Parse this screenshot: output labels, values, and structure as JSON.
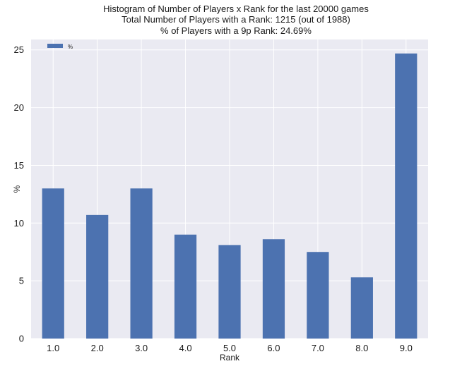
{
  "chart_data": {
    "type": "bar",
    "title_lines": [
      "Histogram of Number of Players x Rank for the last 20000 games",
      "Total Number of Players with a Rank: 1215 (out of 1988)",
      "% of Players with a 9p Rank: 24.69%"
    ],
    "xlabel": "Rank",
    "ylabel": "%",
    "categories": [
      "1.0",
      "2.0",
      "3.0",
      "4.0",
      "5.0",
      "6.0",
      "7.0",
      "8.0",
      "9.0"
    ],
    "series": [
      {
        "name": "%",
        "values": [
          13.0,
          10.7,
          13.0,
          9.0,
          8.1,
          8.6,
          7.5,
          5.3,
          24.69
        ],
        "color": "#4c72b0"
      }
    ],
    "ylim": [
      0,
      25.9
    ],
    "yticks": [
      0,
      5,
      10,
      15,
      20,
      25
    ],
    "grid": true,
    "legend": "top-left",
    "background": "#eaeaf2",
    "grid_color": "#ffffff"
  }
}
